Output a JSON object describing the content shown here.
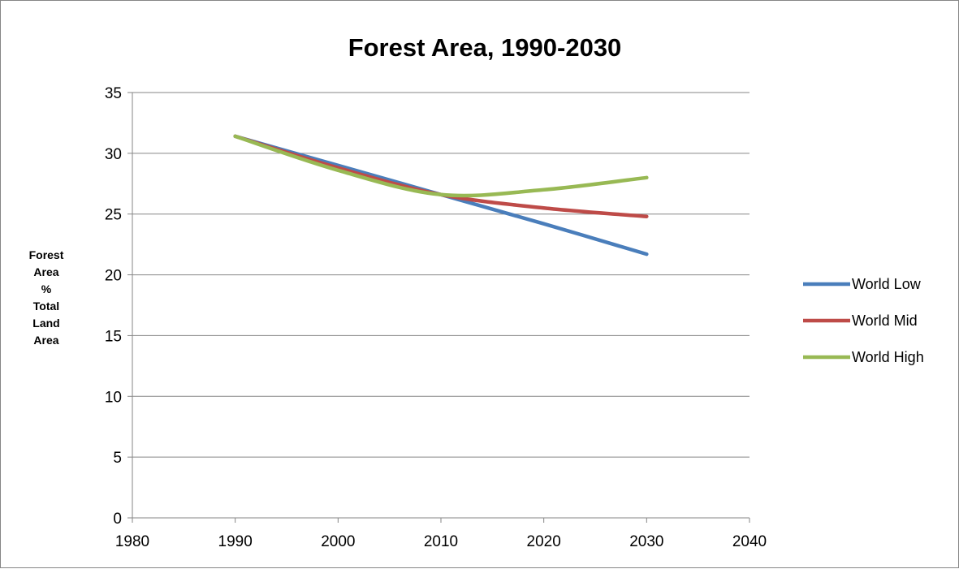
{
  "chart_data": {
    "type": "line",
    "title": "Forest Area, 1990-2030",
    "xlabel": "",
    "ylabel": [
      "Forest",
      "Area",
      "%",
      "Total",
      "Land",
      "Area"
    ],
    "xlim": [
      1980,
      2040
    ],
    "ylim": [
      0,
      35
    ],
    "x_ticks": [
      1980,
      1990,
      2000,
      2010,
      2020,
      2030,
      2040
    ],
    "y_ticks": [
      0,
      5,
      10,
      15,
      20,
      25,
      30,
      35
    ],
    "grid": "horizontal",
    "legend_position": "right",
    "series": [
      {
        "name": "World Low",
        "color": "#4a7ebb",
        "points": [
          [
            1990,
            31.4
          ],
          [
            2000,
            29.0
          ],
          [
            2010,
            26.6
          ],
          [
            2020,
            24.2
          ],
          [
            2030,
            21.7
          ]
        ]
      },
      {
        "name": "World Mid",
        "color": "#be4b48",
        "points": [
          [
            1990,
            31.4
          ],
          [
            2000,
            28.8
          ],
          [
            2010,
            26.6
          ],
          [
            2020,
            25.5
          ],
          [
            2030,
            24.8
          ]
        ]
      },
      {
        "name": "World High",
        "color": "#98b954",
        "points": [
          [
            1990,
            31.4
          ],
          [
            2000,
            28.6
          ],
          [
            2010,
            26.6
          ],
          [
            2020,
            27.0
          ],
          [
            2030,
            28.0
          ]
        ]
      }
    ]
  }
}
